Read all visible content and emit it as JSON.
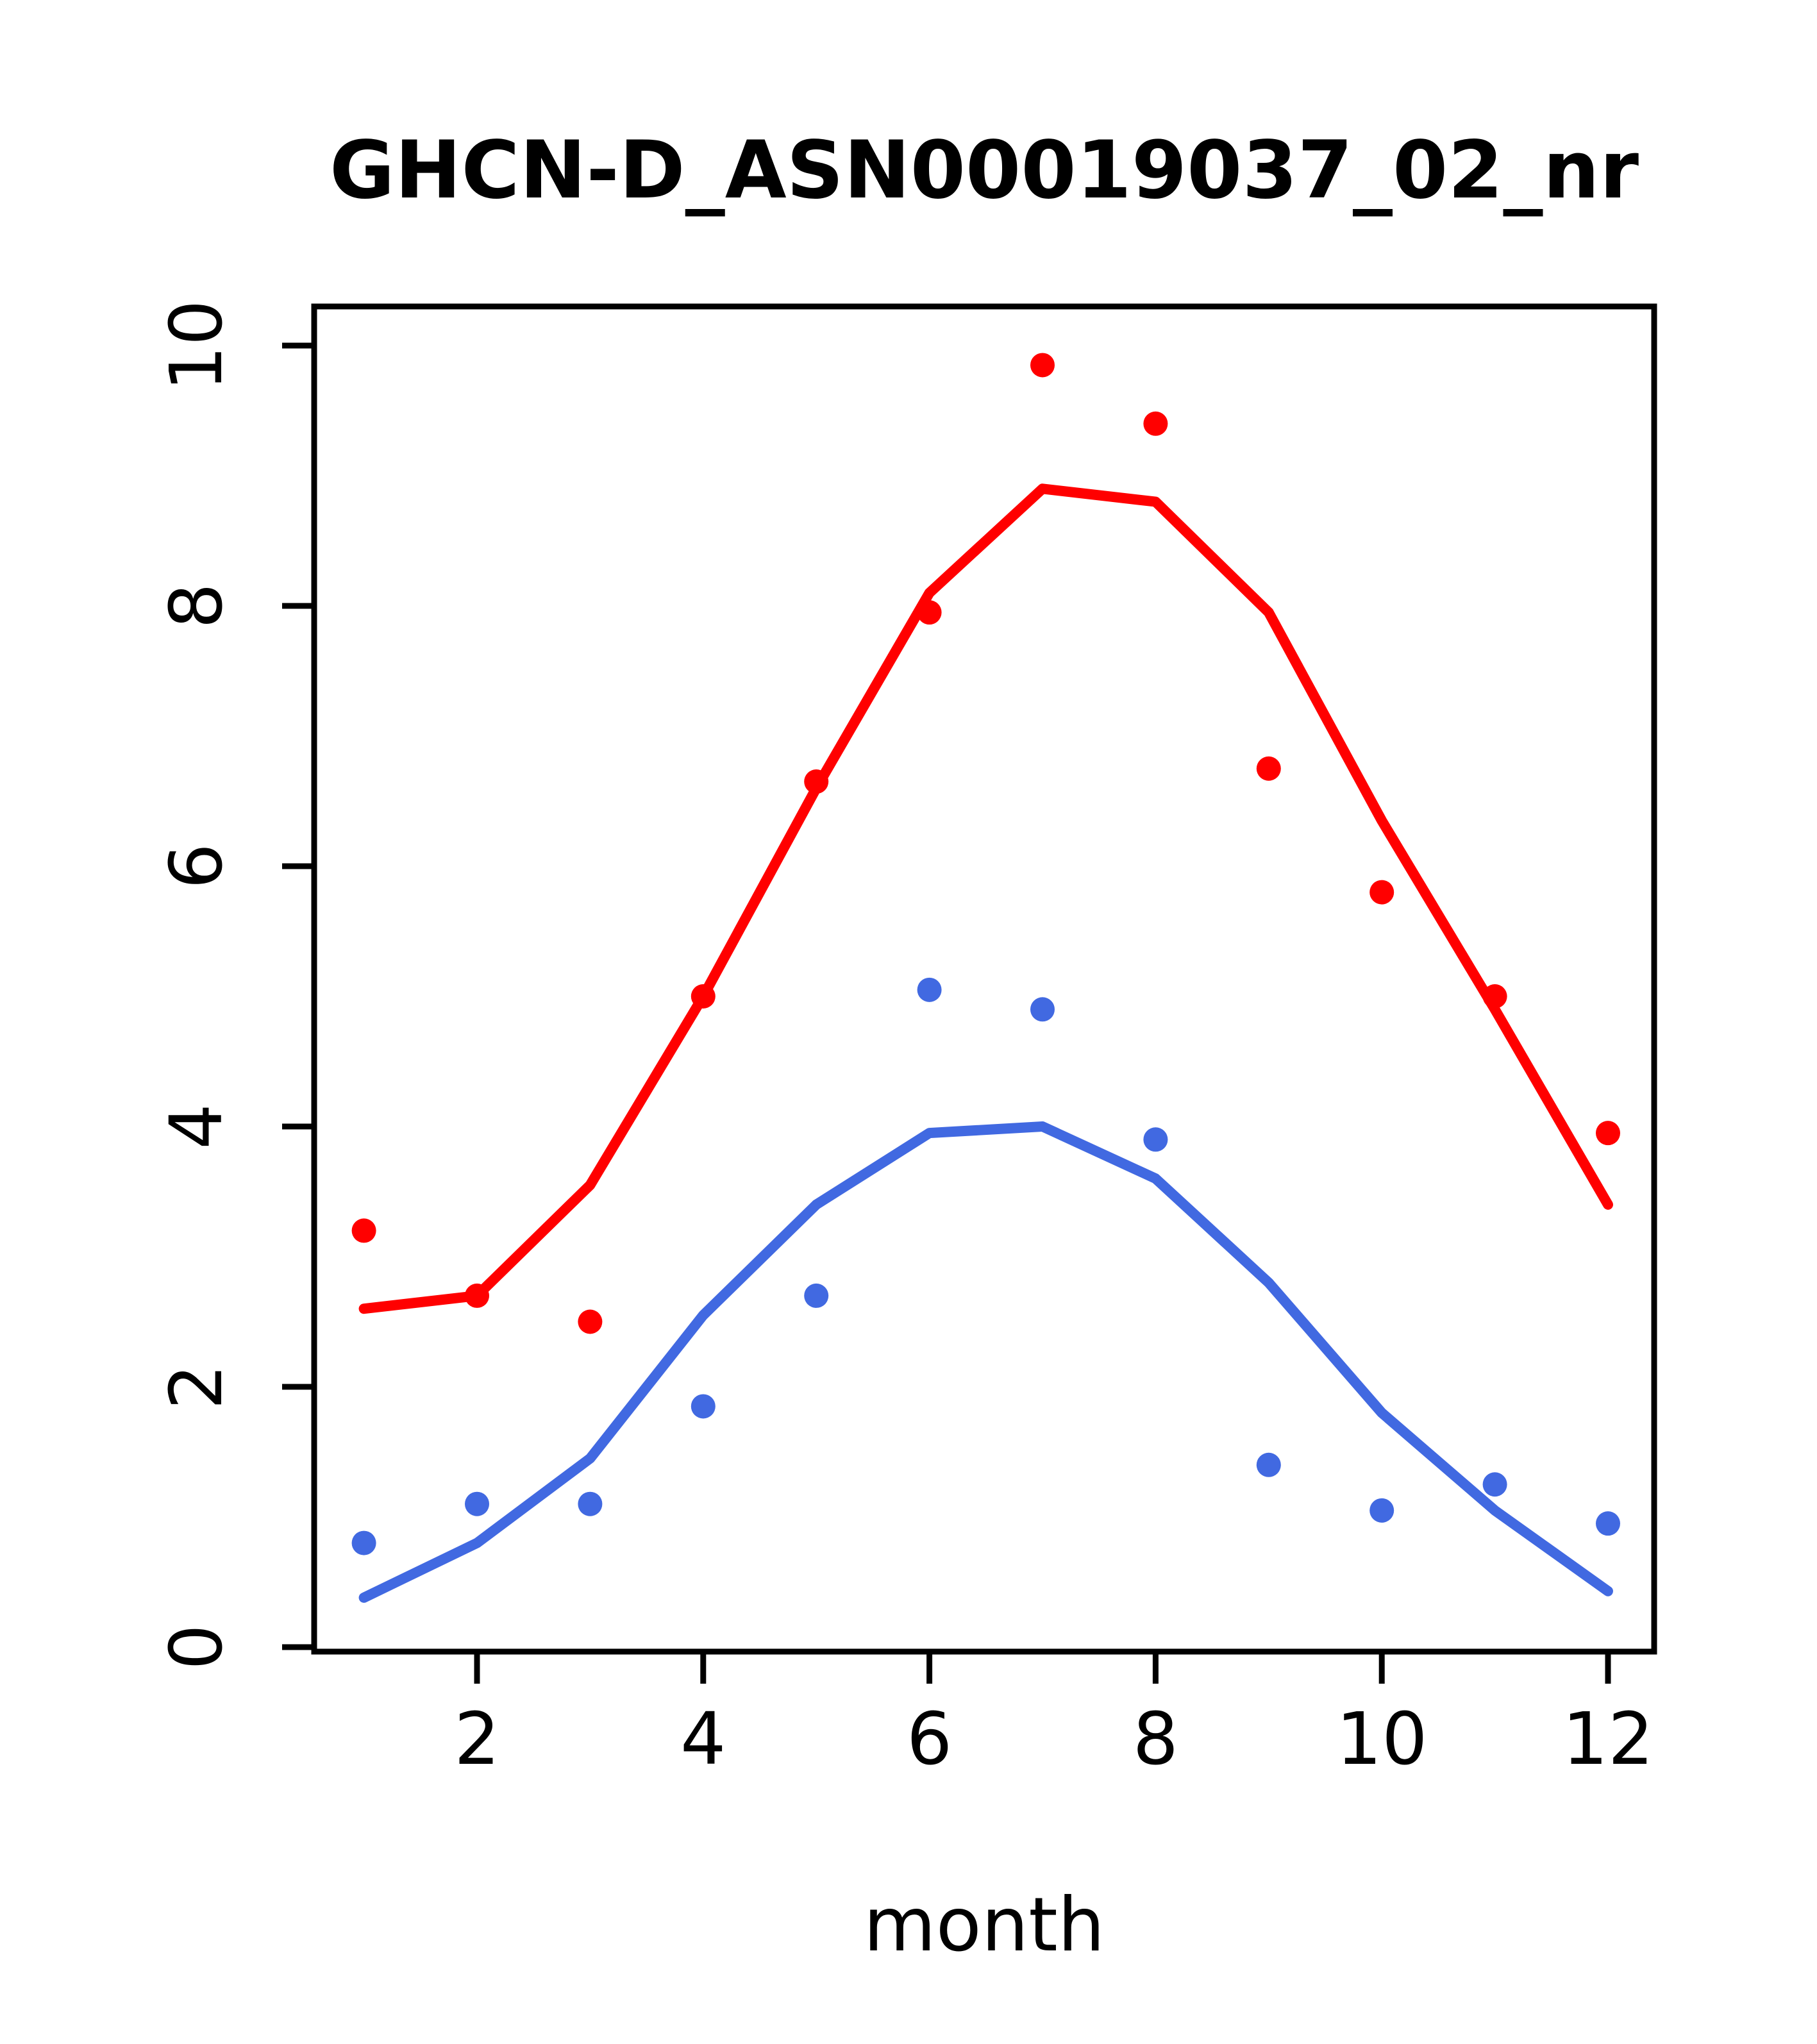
{
  "title": "GHCN-D_ASN00019037_02_nr",
  "chart_data": {
    "type": "scatter",
    "title": "GHCN-D_ASN00019037_02_nr",
    "xlabel": "month",
    "ylabel": "",
    "x": [
      1,
      2,
      3,
      4,
      5,
      6,
      7,
      8,
      9,
      10,
      11,
      12
    ],
    "xlim": [
      0.56,
      12.44
    ],
    "ylim": [
      0,
      10.3
    ],
    "xticks": [
      2,
      4,
      6,
      8,
      10,
      12
    ],
    "yticks": [
      0,
      2,
      4,
      6,
      8,
      10
    ],
    "grid": false,
    "legend": "none",
    "colors": {
      "red": "#ff0000",
      "blue": "#4169e1",
      "axis": "#000000"
    },
    "series": [
      {
        "name": "red-observed-points",
        "kind": "points",
        "color": "#ff0000",
        "values": [
          3.2,
          2.7,
          2.5,
          5.0,
          6.65,
          7.95,
          9.85,
          9.4,
          6.75,
          5.8,
          5.0,
          3.95
        ]
      },
      {
        "name": "red-fit-line",
        "kind": "line",
        "color": "#ff0000",
        "values": [
          2.6,
          2.7,
          3.55,
          5.0,
          6.6,
          8.1,
          8.9,
          8.8,
          7.95,
          6.35,
          4.9,
          3.4
        ]
      },
      {
        "name": "blue-observed-points",
        "kind": "points",
        "color": "#4169e1",
        "values": [
          0.8,
          1.1,
          1.1,
          1.85,
          2.7,
          5.05,
          4.9,
          3.9,
          1.4,
          1.05,
          1.25,
          0.95
        ]
      },
      {
        "name": "blue-fit-line",
        "kind": "line",
        "color": "#4169e1",
        "values": [
          0.38,
          0.8,
          1.45,
          2.55,
          3.4,
          3.95,
          4.0,
          3.6,
          2.8,
          1.8,
          1.05,
          0.43
        ]
      }
    ]
  }
}
